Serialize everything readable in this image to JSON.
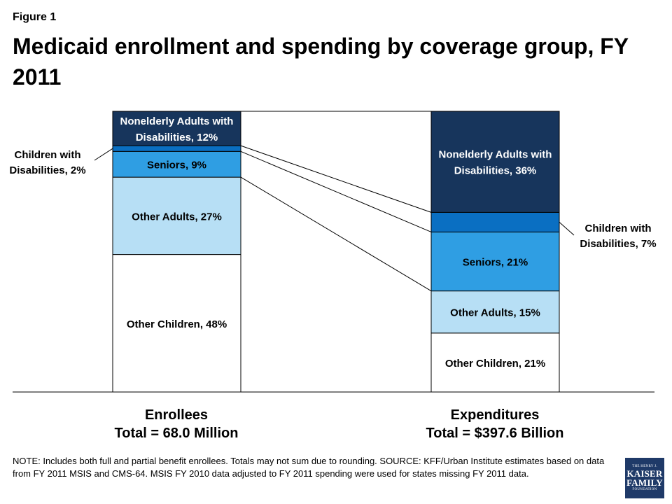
{
  "figure_label": "Figure 1",
  "title": "Medicaid enrollment and spending by coverage group, FY 2011",
  "chart_data": {
    "type": "stacked-bar",
    "categories": [
      "Enrollees",
      "Expenditures"
    ],
    "totals": [
      "Total = 68.0 Million",
      "Total = $397.6 Billion"
    ],
    "unit": "%",
    "series": [
      {
        "name": "Other Children",
        "values": [
          48,
          21
        ],
        "labels": [
          "Other Children, 48%",
          "Other Children, 21%"
        ],
        "color": "#ffffff"
      },
      {
        "name": "Other Adults",
        "values": [
          27,
          15
        ],
        "labels": [
          "Other Adults, 27%",
          "Other Adults, 15%"
        ],
        "color": "#b7dff5"
      },
      {
        "name": "Seniors",
        "values": [
          9,
          21
        ],
        "labels": [
          "Seniors, 9%",
          "Seniors, 21%"
        ],
        "color": "#2f9ee3"
      },
      {
        "name": "Children with Disabilities",
        "values": [
          2,
          7
        ],
        "labels": [
          "Children with Disabilities, 2%",
          "Children with Disabilities, 7%"
        ],
        "color": "#0a6fc2"
      },
      {
        "name": "Nonelderly Adults with Disabilities",
        "values": [
          12,
          36
        ],
        "labels": [
          "Nonelderly Adults with Disabilities, 12%",
          "Nonelderly Adults with Disabilities, 36%"
        ],
        "color": "#17355c"
      }
    ],
    "callouts": {
      "enrollees_children_disabilities": [
        "Children with",
        "Disabilities, 2%"
      ],
      "expenditures_children_disabilities": [
        "Children with",
        "Disabilities, 7%"
      ]
    },
    "segment_text": {
      "enrollees": {
        "Other Children": [
          "Other Children, 48%"
        ],
        "Other Adults": [
          "Other Adults, 27%"
        ],
        "Seniors": [
          "Seniors, 9%"
        ],
        "Nonelderly Adults with Disabilities": [
          "Nonelderly Adults with",
          "Disabilities, 12%"
        ]
      },
      "expenditures": {
        "Other Children": [
          "Other Children, 21%"
        ],
        "Other Adults": [
          "Other Adults, 15%"
        ],
        "Seniors": [
          "Seniors, 21%"
        ],
        "Nonelderly Adults with Disabilities": [
          "Nonelderly Adults with",
          "Disabilities, 36%"
        ]
      }
    },
    "legend": "none",
    "grid": false,
    "connector_lines": true
  },
  "note": "NOTE:  Includes both full and partial benefit enrollees.  Totals may not sum due to rounding. SOURCE: KFF/Urban Institute estimates based on data from FY 2011 MSIS and CMS-64. MSIS FY 2010 data adjusted to FY 2011 spending were used for states missing FY 2011 data.",
  "logo": {
    "line1": "THE HENRY J.",
    "line2": "KAISER",
    "line3": "FAMILY",
    "line4": "FOUNDATION"
  },
  "colors": {
    "text": "#000000",
    "logo_background": "#1f3a68",
    "segment_white": "#ffffff",
    "segment_light_blue": "#b7dff5",
    "segment_medium_blue": "#2f9ee3",
    "segment_blue": "#0a6fc2",
    "segment_navy": "#17355c"
  }
}
